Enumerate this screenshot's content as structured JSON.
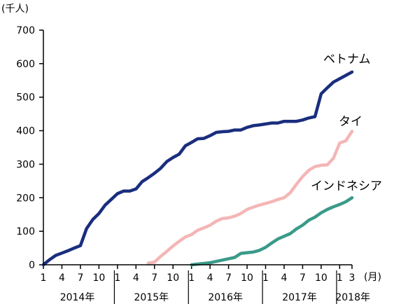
{
  "chart_data": {
    "type": "line",
    "ylabel": "(千人)",
    "ylim": [
      0,
      700
    ],
    "yticks": [
      0,
      100,
      200,
      300,
      400,
      500,
      600,
      700
    ],
    "x_unit": "(月)",
    "x_start": "2014-01",
    "x_end": "2018-03",
    "month_ticks": [
      {
        "date": "2014-01",
        "label": "1"
      },
      {
        "date": "2014-04",
        "label": "4"
      },
      {
        "date": "2014-07",
        "label": "7"
      },
      {
        "date": "2014-10",
        "label": "10"
      },
      {
        "date": "2015-01",
        "label": "1"
      },
      {
        "date": "2015-04",
        "label": "4"
      },
      {
        "date": "2015-07",
        "label": "7"
      },
      {
        "date": "2015-10",
        "label": "10"
      },
      {
        "date": "2016-01",
        "label": "1"
      },
      {
        "date": "2016-04",
        "label": "4"
      },
      {
        "date": "2016-07",
        "label": "7"
      },
      {
        "date": "2016-10",
        "label": "10"
      },
      {
        "date": "2017-01",
        "label": "1"
      },
      {
        "date": "2017-04",
        "label": "4"
      },
      {
        "date": "2017-07",
        "label": "7"
      },
      {
        "date": "2017-10",
        "label": "10"
      },
      {
        "date": "2018-01",
        "label": "1"
      },
      {
        "date": "2018-03",
        "label": "3"
      }
    ],
    "year_labels": [
      {
        "start": "2014-01",
        "end": "2014-12",
        "label": "2014年"
      },
      {
        "start": "2015-01",
        "end": "2015-12",
        "label": "2015年"
      },
      {
        "start": "2016-01",
        "end": "2016-12",
        "label": "2016年"
      },
      {
        "start": "2017-01",
        "end": "2017-12",
        "label": "2017年"
      },
      {
        "start": "2018-01",
        "end": "2018-03",
        "label": "2018年"
      }
    ],
    "series": [
      {
        "name": "ベトナム",
        "color": "#1a2e7e",
        "x": [
          "2014-01",
          "2014-02",
          "2014-03",
          "2014-04",
          "2014-05",
          "2014-06",
          "2014-07",
          "2014-08",
          "2014-09",
          "2014-10",
          "2014-11",
          "2014-12",
          "2015-01",
          "2015-02",
          "2015-03",
          "2015-04",
          "2015-05",
          "2015-06",
          "2015-07",
          "2015-08",
          "2015-09",
          "2015-10",
          "2015-11",
          "2015-12",
          "2016-01",
          "2016-02",
          "2016-03",
          "2016-04",
          "2016-05",
          "2016-06",
          "2016-07",
          "2016-08",
          "2016-09",
          "2016-10",
          "2016-11",
          "2016-12",
          "2017-01",
          "2017-02",
          "2017-03",
          "2017-04",
          "2017-05",
          "2017-06",
          "2017-07",
          "2017-08",
          "2017-09",
          "2017-10",
          "2017-11",
          "2017-12",
          "2018-01",
          "2018-02",
          "2018-03"
        ],
        "values": [
          0,
          15,
          28,
          35,
          42,
          50,
          57,
          108,
          135,
          153,
          178,
          195,
          212,
          220,
          220,
          226,
          248,
          260,
          273,
          288,
          308,
          320,
          330,
          355,
          365,
          376,
          377,
          385,
          395,
          397,
          398,
          402,
          402,
          410,
          415,
          417,
          420,
          423,
          423,
          428,
          428,
          428,
          432,
          438,
          442,
          510,
          528,
          545,
          555,
          565,
          575
        ]
      },
      {
        "name": "タイ",
        "color": "#f4b6b6",
        "x": [
          "2015-06",
          "2015-07",
          "2015-08",
          "2015-09",
          "2015-10",
          "2015-11",
          "2015-12",
          "2016-01",
          "2016-02",
          "2016-03",
          "2016-04",
          "2016-05",
          "2016-06",
          "2016-07",
          "2016-08",
          "2016-09",
          "2016-10",
          "2016-11",
          "2016-12",
          "2017-01",
          "2017-02",
          "2017-03",
          "2017-04",
          "2017-05",
          "2017-06",
          "2017-07",
          "2017-08",
          "2017-09",
          "2017-10",
          "2017-11",
          "2017-12",
          "2018-01",
          "2018-02",
          "2018-03"
        ],
        "values": [
          5,
          8,
          25,
          40,
          56,
          70,
          83,
          90,
          103,
          110,
          118,
          130,
          138,
          140,
          145,
          153,
          165,
          172,
          178,
          183,
          188,
          195,
          200,
          215,
          240,
          263,
          282,
          293,
          297,
          298,
          318,
          363,
          370,
          398
        ]
      },
      {
        "name": "インドネシア",
        "color": "#3a9a8a",
        "x": [
          "2016-01",
          "2016-02",
          "2016-03",
          "2016-04",
          "2016-05",
          "2016-06",
          "2016-07",
          "2016-08",
          "2016-09",
          "2016-10",
          "2016-11",
          "2016-12",
          "2017-01",
          "2017-02",
          "2017-03",
          "2017-04",
          "2017-05",
          "2017-06",
          "2017-07",
          "2017-08",
          "2017-09",
          "2017-10",
          "2017-11",
          "2017-12",
          "2018-01",
          "2018-02",
          "2018-03"
        ],
        "values": [
          0,
          2,
          4,
          6,
          10,
          14,
          18,
          22,
          34,
          36,
          38,
          43,
          52,
          65,
          77,
          85,
          93,
          107,
          118,
          133,
          142,
          155,
          165,
          173,
          180,
          188,
          200
        ]
      }
    ]
  }
}
